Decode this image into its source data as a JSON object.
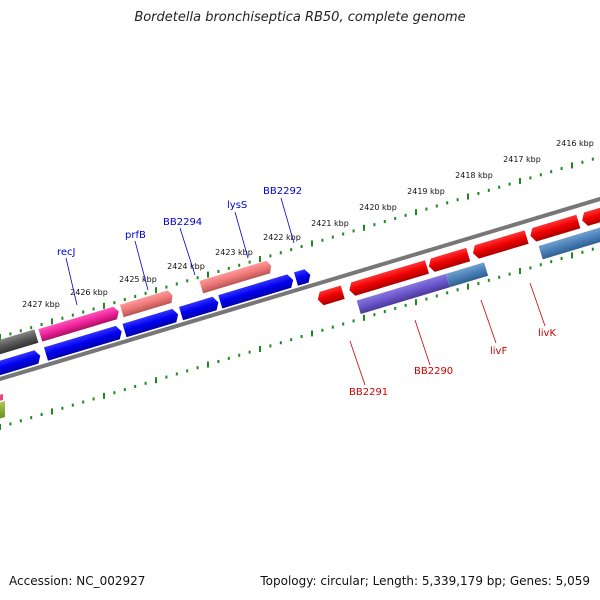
{
  "title": "Bordetella bronchiseptica RB50, complete genome",
  "footer": {
    "accession": "Accession: NC_002927",
    "summary": "Topology: circular; Length: 5,339,179 bp; Genes: 5,059"
  },
  "scale": {
    "labels": [
      "2416 kbp",
      "2417 kbp",
      "2418 kbp",
      "2419 kbp",
      "2420 kbp",
      "2421 kbp",
      "2422 kbp",
      "2423 kbp",
      "2424 kbp",
      "2425 kbp",
      "2426 kbp",
      "2427 kbp"
    ]
  },
  "gene_labels": {
    "recJ": "recJ",
    "prfB": "prfB",
    "BB2294": "BB2294",
    "lysS": "lysS",
    "BB2292": "BB2292",
    "BB2291": "BB2291",
    "BB2290": "BB2290",
    "livF": "livF",
    "livK": "livK"
  },
  "colors": {
    "forward_label": "#0000cc",
    "reverse_label": "#cc0000",
    "tick": "#1a8a1a",
    "backbone": "#777777",
    "blue_cds": "#0000ee",
    "red_cds": "#ee0000",
    "pink_cds": "#ee2299",
    "salmon_cds": "#ee7777",
    "purple_cds": "#6a55cc",
    "steel_cds": "#4a80b8",
    "gray_cds": "#555555",
    "olive_cds": "#88aa33"
  }
}
